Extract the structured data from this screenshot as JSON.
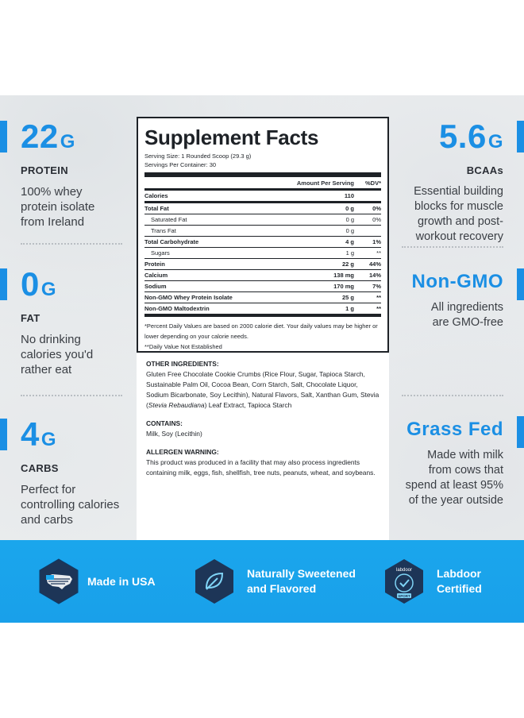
{
  "left_stats": [
    {
      "value": "22",
      "unit": "G",
      "label": "PROTEIN",
      "desc": [
        "100% whey",
        "protein isolate",
        "from Ireland"
      ]
    },
    {
      "value": "0",
      "unit": "G",
      "label": "FAT",
      "desc": [
        "No drinking",
        "calories you'd",
        "rather eat"
      ]
    },
    {
      "value": "4",
      "unit": "G",
      "label": "CARBS",
      "desc": [
        "Perfect for",
        "controlling calories",
        "and carbs"
      ]
    }
  ],
  "right_stats": [
    {
      "value": "5.6",
      "unit": "G",
      "label": "BCAAs",
      "desc": [
        "Essential building",
        "blocks for muscle",
        "growth and post-",
        "workout recovery"
      ]
    },
    {
      "title": "Non-GMO",
      "desc": [
        "All ingredients",
        "are GMO-free"
      ]
    },
    {
      "title": "Grass Fed",
      "desc": [
        "Made with milk",
        "from cows that",
        "spend at least 95%",
        "of the year outside"
      ]
    }
  ],
  "facts": {
    "title": "Supplement Facts",
    "serving_size": "Serving Size: 1 Rounded Scoop (29.3 g)",
    "servings_per_container": "Servings Per Container: 30",
    "col_amount": "Amount Per Serving",
    "col_dv": "%DV*",
    "calories_label": "Calories",
    "calories_value": "110",
    "rows": [
      {
        "name": "Total Fat",
        "amount": "0 g",
        "dv": "0%",
        "style": "b"
      },
      {
        "name": "Saturated Fat",
        "amount": "0 g",
        "dv": "0%",
        "style": "ind"
      },
      {
        "name": "Trans Fat",
        "amount": "0 g",
        "dv": "",
        "style": "ind"
      },
      {
        "name": "Total Carbohydrate",
        "amount": "4 g",
        "dv": "1%",
        "style": "b"
      },
      {
        "name": "Sugars",
        "amount": "1 g",
        "dv": "**",
        "style": "ind"
      },
      {
        "name": "Protein",
        "amount": "22 g",
        "dv": "44%",
        "style": "b"
      },
      {
        "name": "Calcium",
        "amount": "138 mg",
        "dv": "14%",
        "style": "b"
      },
      {
        "name": "Sodium",
        "amount": "170 mg",
        "dv": "7%",
        "style": "b"
      },
      {
        "name": "Non-GMO Whey Protein Isolate",
        "amount": "25 g",
        "dv": "**",
        "style": "b"
      },
      {
        "name": "Non-GMO Maltodextrin",
        "amount": "1 g",
        "dv": "**",
        "style": "b"
      }
    ],
    "footnote_1": "*Percent Daily Values are based on 2000 calorie diet. Your daily values may be higher or lower depending on your calorie needs.",
    "footnote_2": "**Daily Value Not Established"
  },
  "ingredients": {
    "other_heading": "OTHER INGREDIENTS:",
    "other_text_a": "Gluten Free Chocolate Cookie Crumbs (Rice Flour, Sugar, Tapioca Starch, Sustainable Palm Oil, Cocoa Bean, Corn Starch, Salt, Chocolate Liquor, Sodium Bicarbonate, Soy Lecithin), Natural Flavors, Salt, Xanthan Gum, Stevia (",
    "other_text_italic": "Stevia Rebaudiana",
    "other_text_b": ") Leaf Extract, Tapioca Starch",
    "contains_heading": "CONTAINS:",
    "contains_text": "Milk, Soy (Lecithin)",
    "allergen_heading": "ALLERGEN WARNING:",
    "allergen_text": "This product was produced in a facility that may also process ingredients containing milk, eggs, fish, shellfish, tree nuts, peanuts, wheat, and soybeans."
  },
  "badges": [
    {
      "icon": "usa-flag-map-icon",
      "label": [
        "Made in USA"
      ]
    },
    {
      "icon": "leaf-icon",
      "label": [
        "Naturally Sweetened",
        "and Flavored"
      ]
    },
    {
      "icon": "labdoor-sport-icon",
      "label": [
        "Labdoor",
        "Certified"
      ],
      "icon_text": "labdoor",
      "icon_tag": "SPORT"
    }
  ],
  "colors": {
    "accent": "#1b8fe4",
    "band": "#1aa6ec",
    "badge_dark": "#1d3557",
    "text": "#2a2e35"
  }
}
